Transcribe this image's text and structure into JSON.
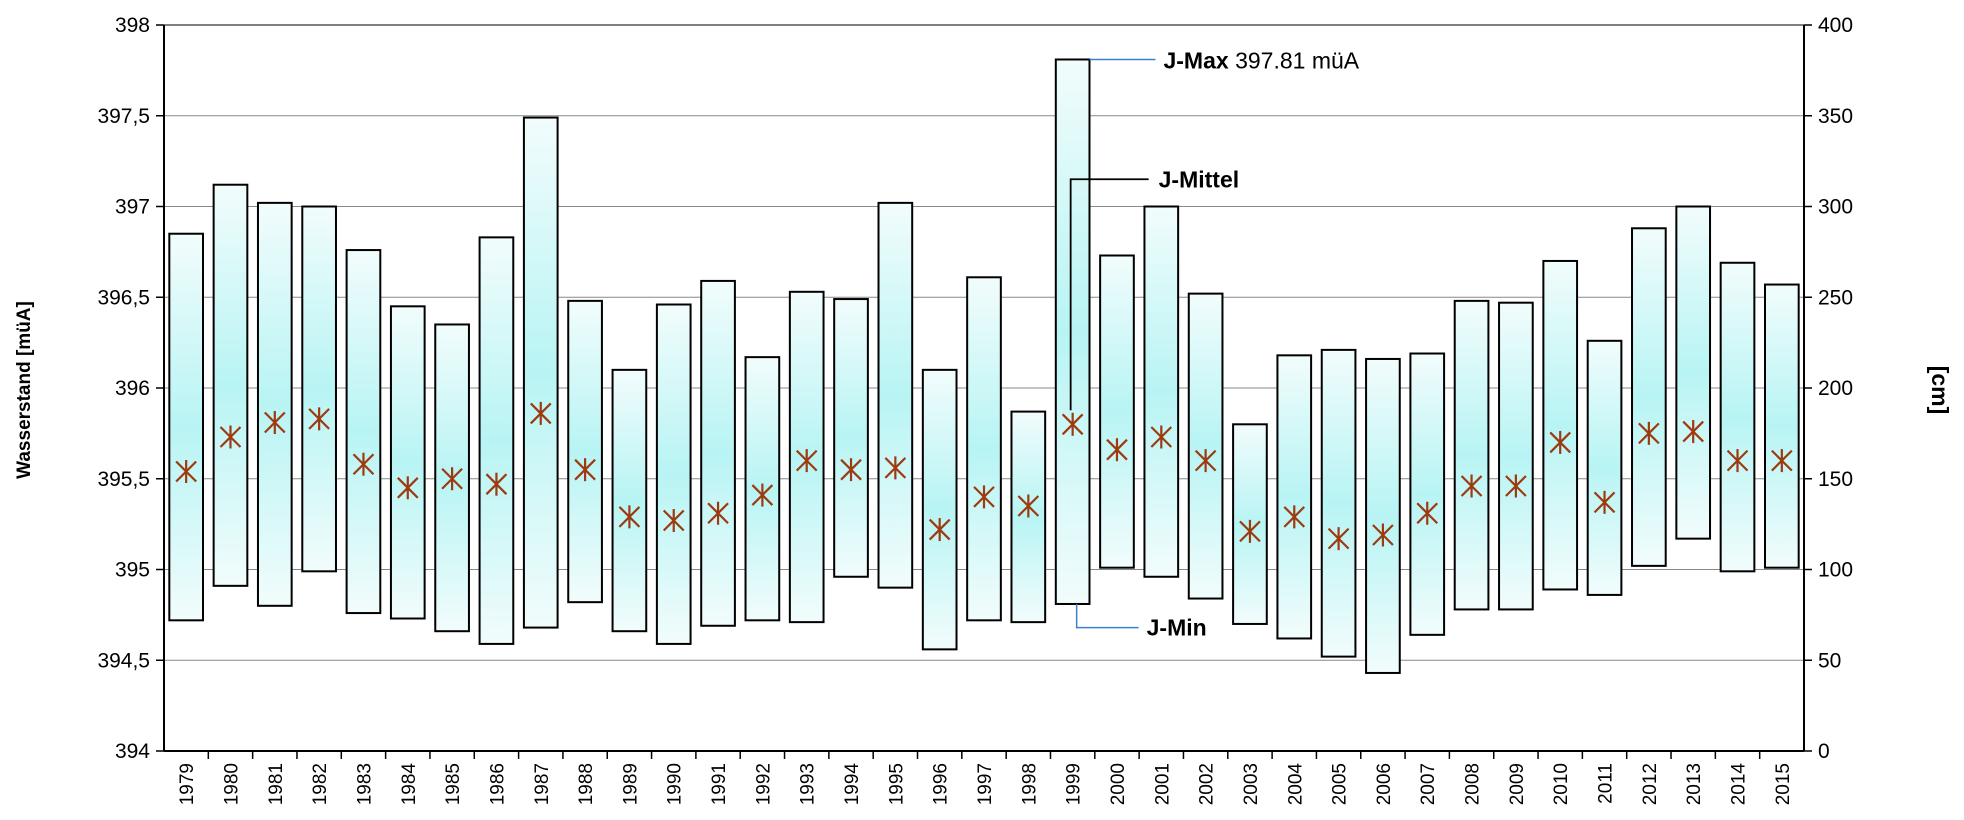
{
  "chart_data": {
    "type": "bar",
    "subtype": "floating-range-with-mean-marker",
    "title": "",
    "ylabel": "Wasserstand [müA]",
    "y2label": "[cm]",
    "ylim": [
      394,
      398
    ],
    "y2lim": [
      0,
      400
    ],
    "yticks": [
      "394",
      "394,5",
      "395",
      "395,5",
      "396",
      "396,5",
      "397",
      "397,5",
      "398"
    ],
    "y2ticks": [
      "0",
      "50",
      "100",
      "150",
      "200",
      "250",
      "300",
      "350",
      "400"
    ],
    "grid": true,
    "colors": {
      "bar_edge": "#000000",
      "bar_fill_center": "#b8f4f4",
      "bar_fill_edge": "#f2fcfc",
      "mean_marker": "#9c3a10",
      "grid": "#888888",
      "leader": "#3a7fd0"
    },
    "categories": [
      "1979",
      "1980",
      "1981",
      "1982",
      "1983",
      "1984",
      "1985",
      "1986",
      "1987",
      "1988",
      "1989",
      "1990",
      "1991",
      "1992",
      "1993",
      "1994",
      "1995",
      "1996",
      "1997",
      "1998",
      "1999",
      "2000",
      "2001",
      "2002",
      "2003",
      "2004",
      "2005",
      "2006",
      "2007",
      "2008",
      "2009",
      "2010",
      "2011",
      "2012",
      "2013",
      "2014",
      "2015"
    ],
    "series": [
      {
        "name": "J-Max",
        "values": [
          396.85,
          397.12,
          397.02,
          397.0,
          396.76,
          396.45,
          396.35,
          396.83,
          397.49,
          396.48,
          396.1,
          396.46,
          396.59,
          396.17,
          396.53,
          396.49,
          397.02,
          396.1,
          396.61,
          395.87,
          397.81,
          396.73,
          397.0,
          396.52,
          395.8,
          396.18,
          396.21,
          396.16,
          396.19,
          396.48,
          396.47,
          396.7,
          396.26,
          396.88,
          397.0,
          396.69,
          396.57
        ]
      },
      {
        "name": "J-Min",
        "values": [
          394.72,
          394.91,
          394.8,
          394.99,
          394.76,
          394.73,
          394.66,
          394.59,
          394.68,
          394.82,
          394.66,
          394.59,
          394.69,
          394.72,
          394.71,
          394.96,
          394.9,
          394.56,
          394.72,
          394.71,
          394.81,
          395.01,
          394.96,
          394.84,
          394.7,
          394.62,
          394.52,
          394.43,
          394.64,
          394.78,
          394.78,
          394.89,
          394.86,
          395.02,
          395.17,
          394.99,
          395.01
        ]
      },
      {
        "name": "J-Mittel",
        "values": [
          395.54,
          395.73,
          395.81,
          395.83,
          395.58,
          395.45,
          395.5,
          395.47,
          395.86,
          395.55,
          395.29,
          395.27,
          395.31,
          395.41,
          395.6,
          395.55,
          395.56,
          395.22,
          395.4,
          395.35,
          395.8,
          395.66,
          395.73,
          395.6,
          395.21,
          395.29,
          395.17,
          395.19,
          395.31,
          395.46,
          395.46,
          395.7,
          395.37,
          395.75,
          395.76,
          395.6,
          395.6
        ]
      }
    ],
    "annotations": [
      {
        "label": "J-Max",
        "value_text": "397.81 müA",
        "year": "1999"
      },
      {
        "label": "J-Mittel",
        "year": "1999"
      },
      {
        "label": "J-Min",
        "year": "1999"
      }
    ]
  }
}
